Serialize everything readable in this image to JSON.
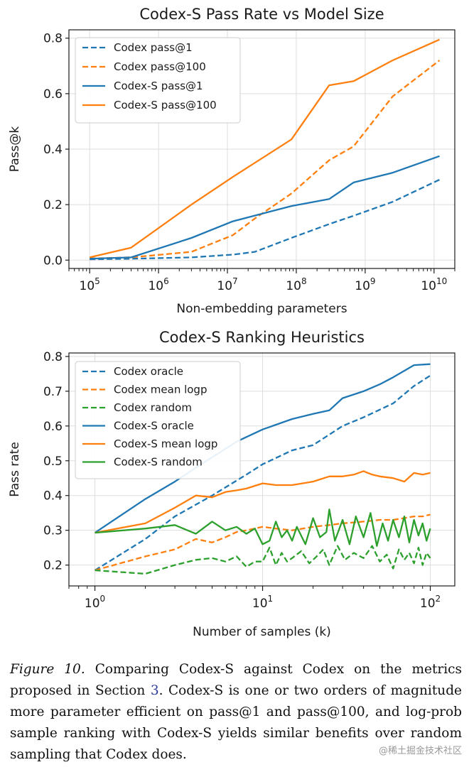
{
  "chart_data": [
    {
      "type": "line",
      "title": "Codex-S Pass Rate vs Model Size",
      "xlabel": "Non-embedding parameters",
      "ylabel": "Pass@k",
      "xscale": "log",
      "xlim": [
        50000,
        20000000000
      ],
      "ylim": [
        -0.03,
        0.83
      ],
      "xticks": [
        {
          "value": 100000,
          "base": "10",
          "exp": "5"
        },
        {
          "value": 1000000,
          "base": "10",
          "exp": "6"
        },
        {
          "value": 10000000,
          "base": "10",
          "exp": "7"
        },
        {
          "value": 100000000,
          "base": "10",
          "exp": "8"
        },
        {
          "value": 1000000000,
          "base": "10",
          "exp": "9"
        },
        {
          "value": 10000000000,
          "base": "10",
          "exp": "10"
        }
      ],
      "yticks": [
        {
          "value": 0.0,
          "label": "0.0"
        },
        {
          "value": 0.2,
          "label": "0.2"
        },
        {
          "value": 0.4,
          "label": "0.4"
        },
        {
          "value": 0.6,
          "label": "0.6"
        },
        {
          "value": 0.8,
          "label": "0.8"
        }
      ],
      "grid": true,
      "legend_position": "top-left",
      "series": [
        {
          "name": "Codex pass@1",
          "color": "#1f77b4",
          "style": "dashed",
          "x": [
            100000,
            400000,
            3000000,
            12000000,
            25000000,
            85000000,
            300000000,
            679000000,
            2500000000,
            12000000000
          ],
          "y": [
            0.003,
            0.005,
            0.01,
            0.02,
            0.03,
            0.08,
            0.13,
            0.16,
            0.21,
            0.29
          ]
        },
        {
          "name": "Codex pass@100",
          "color": "#ff7f0e",
          "style": "dashed",
          "x": [
            100000,
            400000,
            3000000,
            12000000,
            25000000,
            85000000,
            300000000,
            679000000,
            2500000000,
            12000000000
          ],
          "y": [
            0.006,
            0.01,
            0.03,
            0.09,
            0.15,
            0.24,
            0.36,
            0.41,
            0.59,
            0.72
          ]
        },
        {
          "name": "Codex-S pass@1",
          "color": "#1f77b4",
          "style": "solid",
          "x": [
            100000,
            400000,
            3000000,
            12000000,
            85000000,
            300000000,
            679000000,
            2500000000,
            12000000000
          ],
          "y": [
            0.005,
            0.01,
            0.08,
            0.14,
            0.195,
            0.22,
            0.28,
            0.315,
            0.375
          ]
        },
        {
          "name": "Codex-S pass@100",
          "color": "#ff7f0e",
          "style": "solid",
          "x": [
            100000,
            400000,
            3000000,
            12000000,
            85000000,
            300000000,
            679000000,
            2500000000,
            12000000000
          ],
          "y": [
            0.01,
            0.045,
            0.2,
            0.3,
            0.435,
            0.63,
            0.645,
            0.72,
            0.795
          ]
        }
      ]
    },
    {
      "type": "line",
      "title": "Codex-S Ranking Heuristics",
      "xlabel": "Number of samples (k)",
      "ylabel": "Pass rate",
      "xscale": "log",
      "xlim": [
        0.7,
        140
      ],
      "ylim": [
        0.14,
        0.81
      ],
      "xticks": [
        {
          "value": 1,
          "base": "10",
          "exp": "0"
        },
        {
          "value": 10,
          "base": "10",
          "exp": "1"
        },
        {
          "value": 100,
          "base": "10",
          "exp": "2"
        }
      ],
      "yticks": [
        {
          "value": 0.2,
          "label": "0.2"
        },
        {
          "value": 0.3,
          "label": "0.3"
        },
        {
          "value": 0.4,
          "label": "0.4"
        },
        {
          "value": 0.5,
          "label": "0.5"
        },
        {
          "value": 0.6,
          "label": "0.6"
        },
        {
          "value": 0.7,
          "label": "0.7"
        },
        {
          "value": 0.8,
          "label": "0.8"
        }
      ],
      "grid": true,
      "legend_position": "top-left",
      "series": [
        {
          "name": "Codex oracle",
          "color": "#1f77b4",
          "style": "dashed",
          "x": [
            1,
            2,
            3,
            5,
            8,
            10,
            15,
            20,
            30,
            40,
            60,
            80,
            100
          ],
          "y": [
            0.185,
            0.275,
            0.34,
            0.4,
            0.46,
            0.49,
            0.53,
            0.545,
            0.6,
            0.625,
            0.665,
            0.715,
            0.745
          ]
        },
        {
          "name": "Codex mean logp",
          "color": "#ff7f0e",
          "style": "dashed",
          "x": [
            1,
            2,
            3,
            4,
            5,
            6,
            7,
            8,
            10,
            12,
            15,
            20,
            25,
            30,
            40,
            50,
            60,
            70,
            80,
            90,
            100
          ],
          "y": [
            0.185,
            0.225,
            0.245,
            0.275,
            0.265,
            0.28,
            0.295,
            0.3,
            0.31,
            0.305,
            0.3,
            0.31,
            0.315,
            0.32,
            0.325,
            0.33,
            0.33,
            0.335,
            0.34,
            0.34,
            0.345
          ]
        },
        {
          "name": "Codex random",
          "color": "#2ca02c",
          "style": "dashed",
          "x": [
            1,
            2,
            3,
            4,
            5,
            6,
            7,
            8,
            9,
            10,
            11,
            12,
            13,
            14,
            15,
            17,
            19,
            21,
            23,
            25,
            28,
            31,
            35,
            40,
            45,
            50,
            55,
            60,
            65,
            70,
            75,
            80,
            85,
            90,
            95,
            100
          ],
          "y": [
            0.185,
            0.175,
            0.2,
            0.215,
            0.22,
            0.21,
            0.225,
            0.195,
            0.21,
            0.21,
            0.25,
            0.2,
            0.235,
            0.21,
            0.22,
            0.24,
            0.205,
            0.225,
            0.245,
            0.2,
            0.255,
            0.215,
            0.235,
            0.22,
            0.255,
            0.21,
            0.23,
            0.19,
            0.245,
            0.215,
            0.235,
            0.205,
            0.25,
            0.2,
            0.235,
            0.22
          ]
        },
        {
          "name": "Codex-S oracle",
          "color": "#1f77b4",
          "style": "solid",
          "x": [
            1,
            2,
            3,
            4,
            5,
            7,
            10,
            15,
            20,
            25,
            30,
            40,
            50,
            60,
            80,
            100
          ],
          "y": [
            0.293,
            0.39,
            0.44,
            0.48,
            0.51,
            0.555,
            0.59,
            0.62,
            0.635,
            0.645,
            0.68,
            0.7,
            0.72,
            0.74,
            0.775,
            0.778
          ]
        },
        {
          "name": "Codex-S mean logp",
          "color": "#ff7f0e",
          "style": "solid",
          "x": [
            1,
            2,
            3,
            4,
            5,
            6,
            7,
            8,
            10,
            12,
            15,
            20,
            25,
            30,
            35,
            40,
            45,
            50,
            60,
            70,
            80,
            90,
            100
          ],
          "y": [
            0.293,
            0.32,
            0.365,
            0.4,
            0.395,
            0.41,
            0.415,
            0.42,
            0.435,
            0.43,
            0.43,
            0.44,
            0.455,
            0.455,
            0.46,
            0.47,
            0.46,
            0.455,
            0.45,
            0.44,
            0.465,
            0.46,
            0.465
          ]
        },
        {
          "name": "Codex-S random",
          "color": "#2ca02c",
          "style": "solid",
          "x": [
            1,
            2,
            3,
            4,
            5,
            6,
            7,
            8,
            9,
            10,
            11,
            12,
            13,
            14,
            15,
            16,
            18,
            20,
            22,
            24,
            25,
            27,
            30,
            33,
            36,
            40,
            44,
            48,
            52,
            56,
            60,
            65,
            70,
            75,
            80,
            85,
            90,
            95,
            100
          ],
          "y": [
            0.293,
            0.305,
            0.315,
            0.29,
            0.325,
            0.3,
            0.31,
            0.29,
            0.305,
            0.26,
            0.27,
            0.325,
            0.28,
            0.3,
            0.27,
            0.31,
            0.26,
            0.335,
            0.28,
            0.295,
            0.36,
            0.27,
            0.33,
            0.26,
            0.34,
            0.28,
            0.35,
            0.255,
            0.32,
            0.27,
            0.33,
            0.28,
            0.34,
            0.265,
            0.33,
            0.285,
            0.32,
            0.27,
            0.305
          ]
        }
      ]
    }
  ],
  "caption": {
    "figure_label": "Figure 10.",
    "text_before_ref": "Comparing Codex-S against Codex on the metrics proposed in Section",
    "section_ref": "3",
    "text_after_ref": ". Codex-S is one or two orders of magnitude more parameter efficient on pass@1 and pass@100, and log-prob sample ranking with Codex-S yields similar benefits over random sampling that Codex does."
  },
  "watermark": "@稀土掘金技术社区"
}
